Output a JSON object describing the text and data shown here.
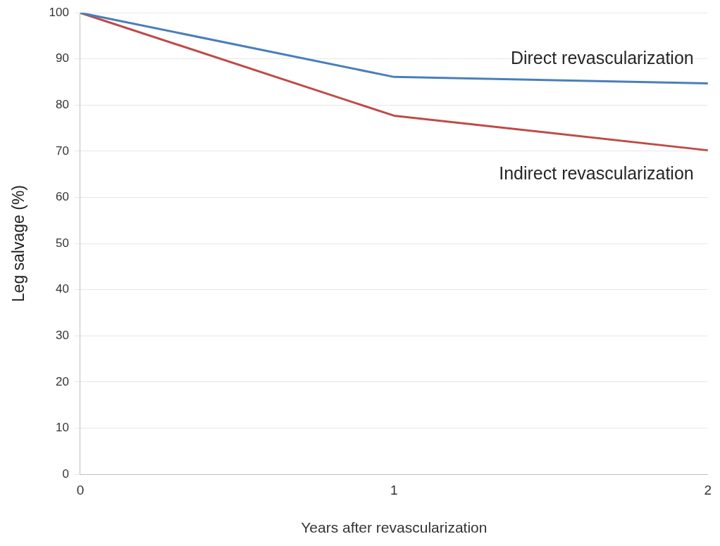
{
  "chart_data": {
    "type": "line",
    "xlabel": "Years after revascularization",
    "ylabel": "Leg salvage (%)",
    "x": [
      0,
      1,
      2
    ],
    "xlim": [
      0,
      2
    ],
    "xticks": [
      0,
      1,
      2
    ],
    "ylim": [
      0,
      100
    ],
    "yticks": [
      0,
      10,
      20,
      30,
      40,
      50,
      60,
      70,
      80,
      90,
      100
    ],
    "grid": "y",
    "legend": false,
    "marker": "none",
    "line_style": "solid",
    "series": [
      {
        "name": "Direct revascularization",
        "color": "#4a7ebb",
        "values": [
          100,
          86.1,
          84.7
        ]
      },
      {
        "name": "Indirect revascularization",
        "color": "#be4b48",
        "values": [
          100,
          77.7,
          70.2
        ]
      }
    ]
  }
}
